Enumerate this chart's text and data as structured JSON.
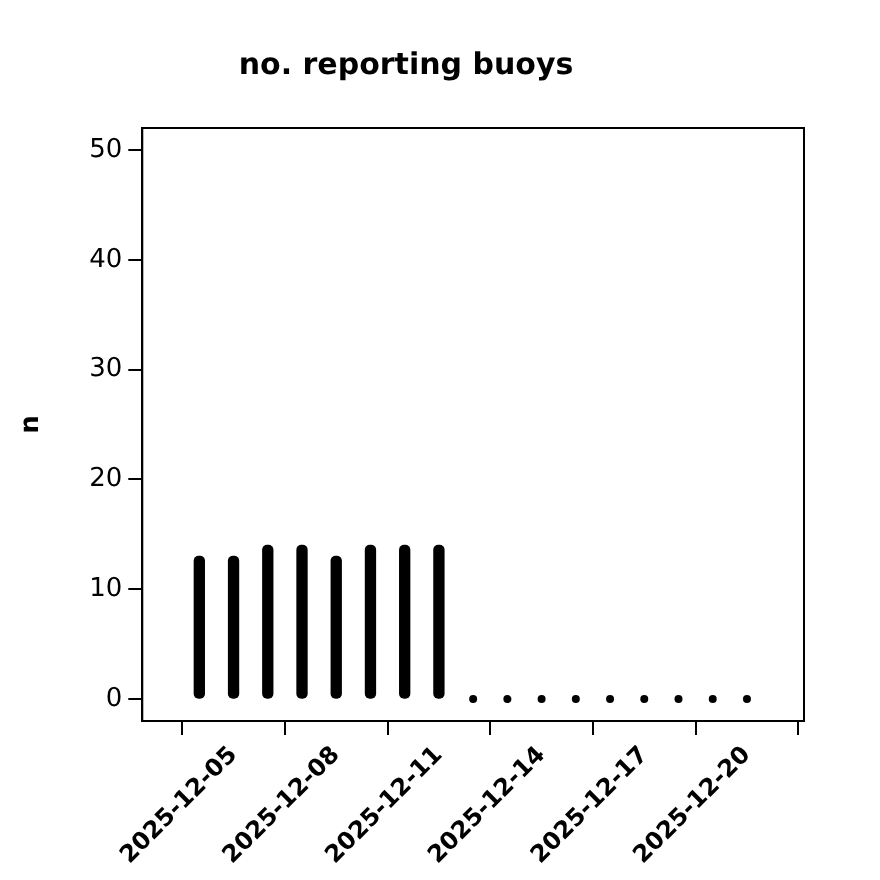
{
  "chart_data": {
    "type": "bar",
    "title": "no. reporting buoys",
    "ylabel": "n",
    "x": [
      "2025-12-04",
      "2025-12-05",
      "2025-12-06",
      "2025-12-07",
      "2025-12-08",
      "2025-12-09",
      "2025-12-10",
      "2025-12-11",
      "2025-12-12",
      "2025-12-13",
      "2025-12-14",
      "2025-12-15",
      "2025-12-16",
      "2025-12-17",
      "2025-12-18",
      "2025-12-19",
      "2025-12-20"
    ],
    "series": [
      {
        "type": "bar",
        "color": "#000000",
        "values": [
          13,
          13,
          14,
          14,
          13,
          14,
          14,
          14,
          null,
          null,
          null,
          null,
          null,
          null,
          null,
          null,
          null
        ]
      },
      {
        "type": "scatter",
        "color": "#000000",
        "marker": "circle",
        "values": [
          null,
          null,
          null,
          null,
          null,
          null,
          null,
          null,
          0,
          0,
          0,
          0,
          0,
          0,
          0,
          0,
          0
        ]
      }
    ],
    "xlim": [
      "2025-12-02T08:00",
      "2025-12-21T16:00"
    ],
    "xticks": [
      "2025-12-05",
      "2025-12-08",
      "2025-12-11",
      "2025-12-14",
      "2025-12-17",
      "2025-12-20"
    ],
    "ylim": [
      -2,
      52
    ],
    "yticks": [
      0,
      10,
      20,
      30,
      40,
      50
    ],
    "grid": false,
    "legend": false
  }
}
